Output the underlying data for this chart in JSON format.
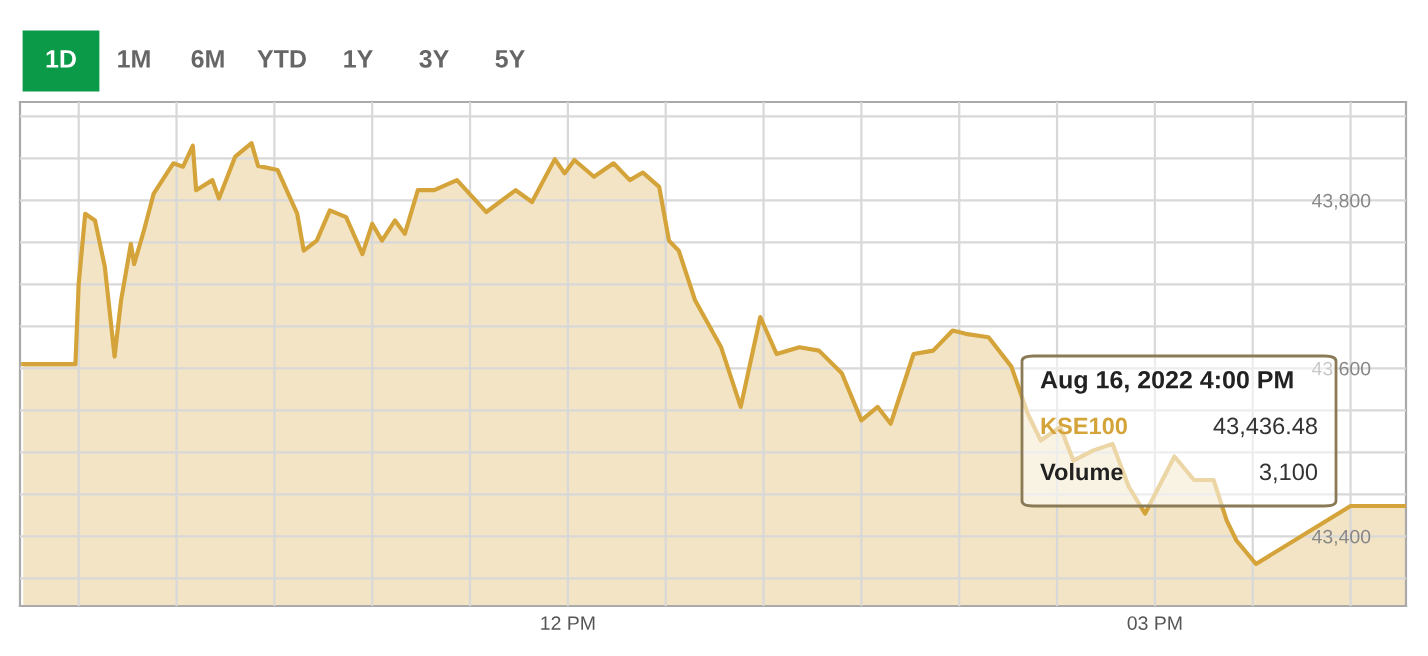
{
  "chart_data": {
    "type": "area",
    "color": "#d4a43a",
    "x": [
      "2022-08-16T09:13",
      "2022-08-16T09:29",
      "2022-08-16T09:30",
      "2022-08-16T09:32",
      "2022-08-16T09:35",
      "2022-08-16T09:38",
      "2022-08-16T09:41",
      "2022-08-16T09:43",
      "2022-08-16T09:46",
      "2022-08-16T09:47",
      "2022-08-16T09:50",
      "2022-08-16T09:53",
      "2022-08-16T09:59",
      "2022-08-16T10:02",
      "2022-08-16T10:05",
      "2022-08-16T10:06",
      "2022-08-16T10:11",
      "2022-08-16T10:13",
      "2022-08-16T10:18",
      "2022-08-16T10:23",
      "2022-08-16T10:25",
      "2022-08-16T10:31",
      "2022-08-16T10:37",
      "2022-08-16T10:39",
      "2022-08-16T10:43",
      "2022-08-16T10:47",
      "2022-08-16T10:52",
      "2022-08-16T10:57",
      "2022-08-16T11:00",
      "2022-08-16T11:03",
      "2022-08-16T11:07",
      "2022-08-16T11:10",
      "2022-08-16T11:14",
      "2022-08-16T11:19",
      "2022-08-16T11:26",
      "2022-08-16T11:35",
      "2022-08-16T11:44",
      "2022-08-16T11:49",
      "2022-08-16T11:56",
      "2022-08-16T11:59",
      "2022-08-16T12:02",
      "2022-08-16T12:08",
      "2022-08-16T12:14",
      "2022-08-16T12:19",
      "2022-08-16T12:23",
      "2022-08-16T12:28",
      "2022-08-16T12:31",
      "2022-08-16T12:34",
      "2022-08-16T12:39",
      "2022-08-16T12:47",
      "2022-08-16T12:53",
      "2022-08-16T12:59",
      "2022-08-16T13:04",
      "2022-08-16T13:11",
      "2022-08-16T13:17",
      "2022-08-16T13:24",
      "2022-08-16T13:30",
      "2022-08-16T13:35",
      "2022-08-16T13:39",
      "2022-08-16T13:46",
      "2022-08-16T13:52",
      "2022-08-16T13:58",
      "2022-08-16T14:02",
      "2022-08-16T14:09",
      "2022-08-16T14:16",
      "2022-08-16T14:21",
      "2022-08-16T14:25",
      "2022-08-16T14:31",
      "2022-08-16T14:35",
      "2022-08-16T14:41",
      "2022-08-16T14:47",
      "2022-08-16T14:52",
      "2022-08-16T14:57",
      "2022-08-16T15:06",
      "2022-08-16T15:12",
      "2022-08-16T15:18",
      "2022-08-16T15:22",
      "2022-08-16T15:25",
      "2022-08-16T15:31",
      "2022-08-16T16:00",
      "2022-08-16T16:17"
    ],
    "values": [
      43605,
      43605,
      43701,
      43784,
      43776,
      43721,
      43614,
      43681,
      43748,
      43724,
      43764,
      43808,
      43844,
      43840,
      43865,
      43812,
      43824,
      43802,
      43852,
      43868,
      43841,
      43836,
      43784,
      43740,
      43752,
      43788,
      43780,
      43736,
      43772,
      43752,
      43776,
      43760,
      43812,
      43812,
      43824,
      43786,
      43812,
      43798,
      43849,
      43832,
      43848,
      43828,
      43844,
      43824,
      43833,
      43816,
      43752,
      43740,
      43681,
      43625,
      43554,
      43661,
      43617,
      43625,
      43621,
      43594,
      43538,
      43554,
      43534,
      43617,
      43621,
      43645,
      43641,
      43637,
      43602,
      43546,
      43514,
      43530,
      43490,
      43502,
      43510,
      43459,
      43427,
      43495,
      43467,
      43467,
      43419,
      43395,
      43367,
      43436,
      43436
    ],
    "xlim": [
      "2022-08-16T09:12",
      "2022-08-16T16:17"
    ],
    "ylim": [
      43317,
      43917
    ],
    "xticks": [
      {
        "value": "2022-08-16T09:30",
        "label": null
      },
      {
        "value": "2022-08-16T10:00",
        "label": null
      },
      {
        "value": "2022-08-16T10:30",
        "label": null
      },
      {
        "value": "2022-08-16T11:00",
        "label": null
      },
      {
        "value": "2022-08-16T11:30",
        "label": null
      },
      {
        "value": "2022-08-16T12:00",
        "label": "12 PM"
      },
      {
        "value": "2022-08-16T12:30",
        "label": null
      },
      {
        "value": "2022-08-16T13:00",
        "label": null
      },
      {
        "value": "2022-08-16T13:30",
        "label": null
      },
      {
        "value": "2022-08-16T14:00",
        "label": null
      },
      {
        "value": "2022-08-16T14:30",
        "label": null
      },
      {
        "value": "2022-08-16T15:00",
        "label": "03 PM"
      },
      {
        "value": "2022-08-16T15:30",
        "label": null
      },
      {
        "value": "2022-08-16T16:00",
        "label": null
      }
    ],
    "yticks": [
      {
        "value": 43350,
        "label": null
      },
      {
        "value": 43400,
        "label": "43,400"
      },
      {
        "value": 43450,
        "label": null
      },
      {
        "value": 43500,
        "label": null
      },
      {
        "value": 43550,
        "label": null
      },
      {
        "value": 43600,
        "label": "43,600"
      },
      {
        "value": 43650,
        "label": null
      },
      {
        "value": 43700,
        "label": null
      },
      {
        "value": 43750,
        "label": null
      },
      {
        "value": 43800,
        "label": "43,800"
      },
      {
        "value": 43850,
        "label": null
      },
      {
        "value": 43900,
        "label": null
      }
    ],
    "grid": true,
    "annotations": [
      "1D",
      "1M",
      "6M",
      "YTD",
      "1Y",
      "3Y",
      "5Y",
      "Aug 16, 2022 4:00 PM",
      "KSE100",
      "43,436.48",
      "Volume",
      "3,100"
    ]
  }
}
